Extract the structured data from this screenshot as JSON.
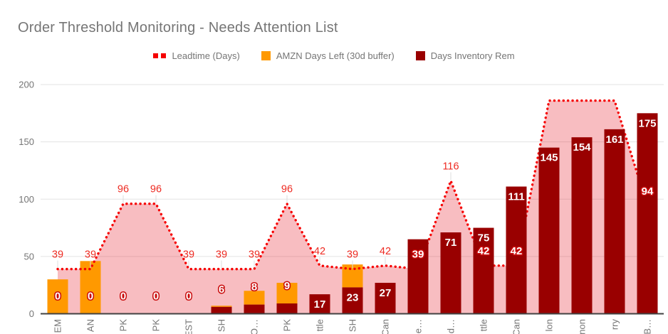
{
  "title": "Order Threshold Monitoring - Needs Attention List",
  "legend": {
    "items": [
      {
        "label": "Leadtime (Days)",
        "marker": "dotted-line-icon",
        "color": "#f50000"
      },
      {
        "label": "AMZN Days Left (30d buffer)",
        "marker": "square-icon",
        "color": "#ff9900"
      },
      {
        "label": "Days Inventory Rem",
        "marker": "square-icon",
        "color": "#990000"
      }
    ]
  },
  "y_axis": {
    "tick_labels": [
      "0",
      "50",
      "100",
      "150",
      "200"
    ]
  },
  "chart_data": {
    "type": "combo",
    "legend_position": "top",
    "grid": true,
    "ylim": [
      0,
      200
    ],
    "yticks": [
      0,
      50,
      100,
      150,
      200
    ],
    "categories": [
      "EM",
      "AN",
      "PK",
      "PK",
      "EST",
      "SH",
      "O…",
      "PK",
      "ttle",
      "SH",
      "Can",
      "e…",
      "d…",
      "ttle",
      "Can",
      "lon",
      "non",
      "rry",
      "B…"
    ],
    "colors": {
      "leadtime_line": "#f50000",
      "leadtime_area": "rgba(230,10,25,0.27)",
      "leadtime_label": "#ee2b22",
      "label_outline_stroke": "#c90b0b",
      "amzn_bar": "#ff9900",
      "inventory_bar": "#990000",
      "bar_label_fill": "#ffffff",
      "gridline": "#e3e3e3",
      "axis_line": "#424242",
      "axis_text": "#757575"
    },
    "series": [
      {
        "name": "Leadtime (Days)",
        "type": "line",
        "style": "dotted-with-area",
        "values": [
          39,
          39,
          96,
          96,
          39,
          39,
          39,
          96,
          42,
          39,
          42,
          39,
          116,
          42,
          42,
          186,
          186,
          186,
          94
        ],
        "labels": [
          "39",
          "39",
          "96",
          "96",
          "39",
          "39",
          "39",
          "96",
          "42",
          "39",
          "42",
          "39",
          "116",
          "42",
          "42",
          "",
          "",
          "",
          "94"
        ],
        "label_modes": [
          "plain",
          "plain",
          "plain",
          "plain",
          "plain",
          "plain",
          "plain",
          "plain",
          "plain",
          "plain",
          "plain",
          "outline",
          "plain",
          "outline",
          "outline",
          "none",
          "none",
          "none",
          "outline"
        ]
      },
      {
        "name": "AMZN Days Left (30d buffer)",
        "type": "bar",
        "stack": "top-segment",
        "values": [
          30,
          46,
          0,
          0,
          0,
          1,
          12,
          18,
          0,
          20,
          0,
          0,
          0,
          0,
          0,
          0,
          0,
          0,
          0
        ]
      },
      {
        "name": "Days Inventory Rem",
        "type": "bar",
        "stack": "bottom-segment",
        "values": [
          0,
          0,
          0,
          0,
          0,
          6,
          8,
          9,
          17,
          23,
          27,
          65,
          71,
          75,
          111,
          145,
          154,
          161,
          175
        ],
        "labels": [
          "0",
          "0",
          "0",
          "0",
          "0",
          "6",
          "8",
          "9",
          "17",
          "23",
          "27",
          "",
          "71",
          "75",
          "111",
          "145",
          "154",
          "161",
          "175"
        ],
        "label_modes": [
          "outline",
          "outline",
          "outline",
          "outline",
          "outline",
          "outline",
          "outline",
          "outline",
          "inside",
          "inside",
          "inside",
          "none",
          "inside",
          "inside",
          "inside",
          "inside",
          "inside",
          "inside",
          "inside"
        ]
      }
    ]
  }
}
